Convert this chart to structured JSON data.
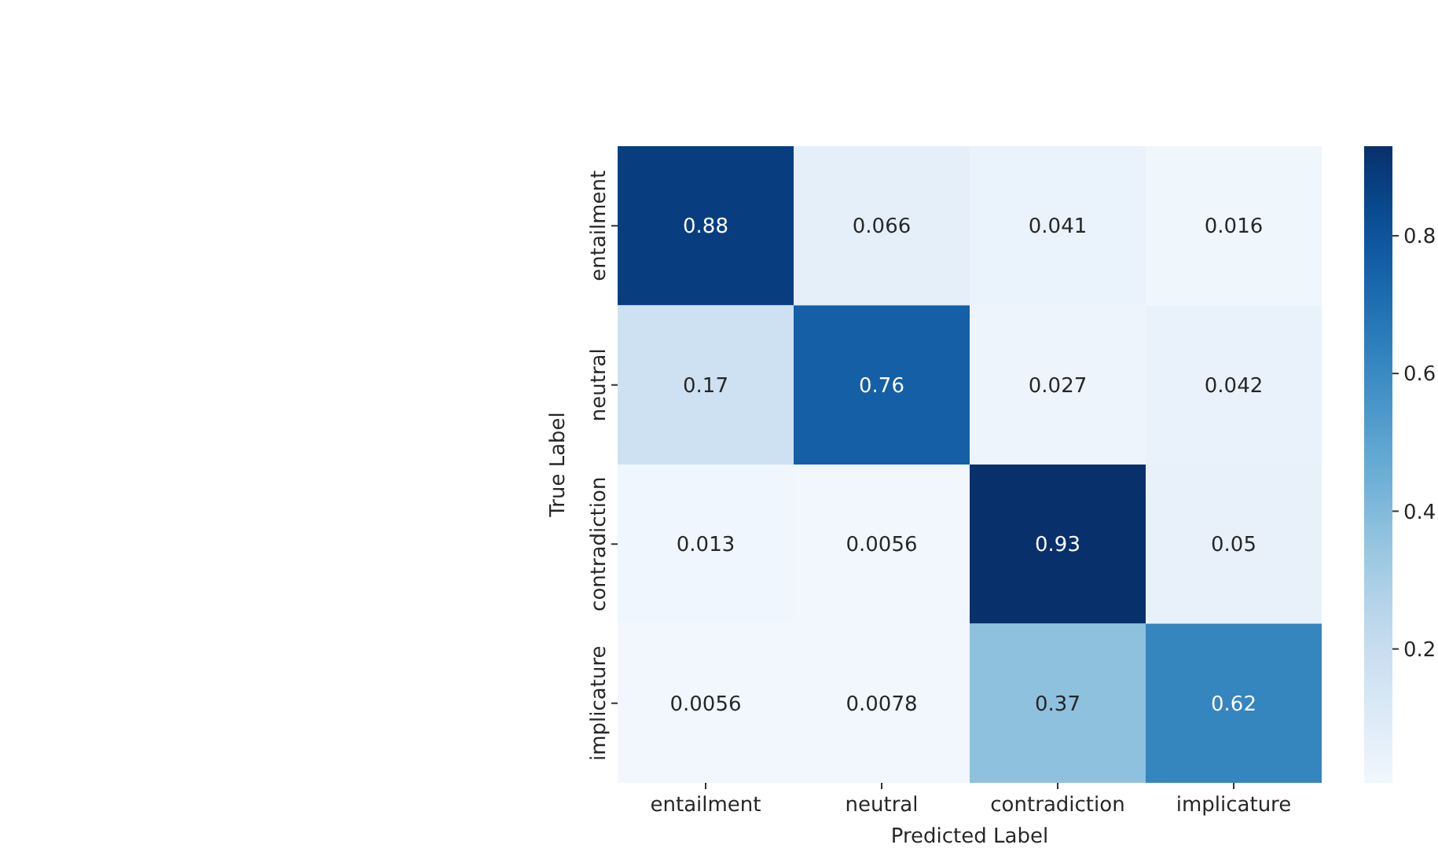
{
  "chart_data": {
    "type": "heatmap",
    "xlabel": "Predicted Label",
    "ylabel": "True Label",
    "categories": [
      "entailment",
      "neutral",
      "contradiction",
      "implicature"
    ],
    "y_categories": [
      "entailment",
      "neutral",
      "contradiction",
      "implicature"
    ],
    "cells": [
      [
        0.88,
        0.066,
        0.041,
        0.016
      ],
      [
        0.17,
        0.76,
        0.027,
        0.042
      ],
      [
        0.013,
        0.0056,
        0.93,
        0.05
      ],
      [
        0.0056,
        0.0078,
        0.37,
        0.62
      ]
    ],
    "data_labels": true,
    "clim": [
      0.0056,
      0.93
    ],
    "cticks": [
      0.2,
      0.4,
      0.6,
      0.8
    ]
  }
}
